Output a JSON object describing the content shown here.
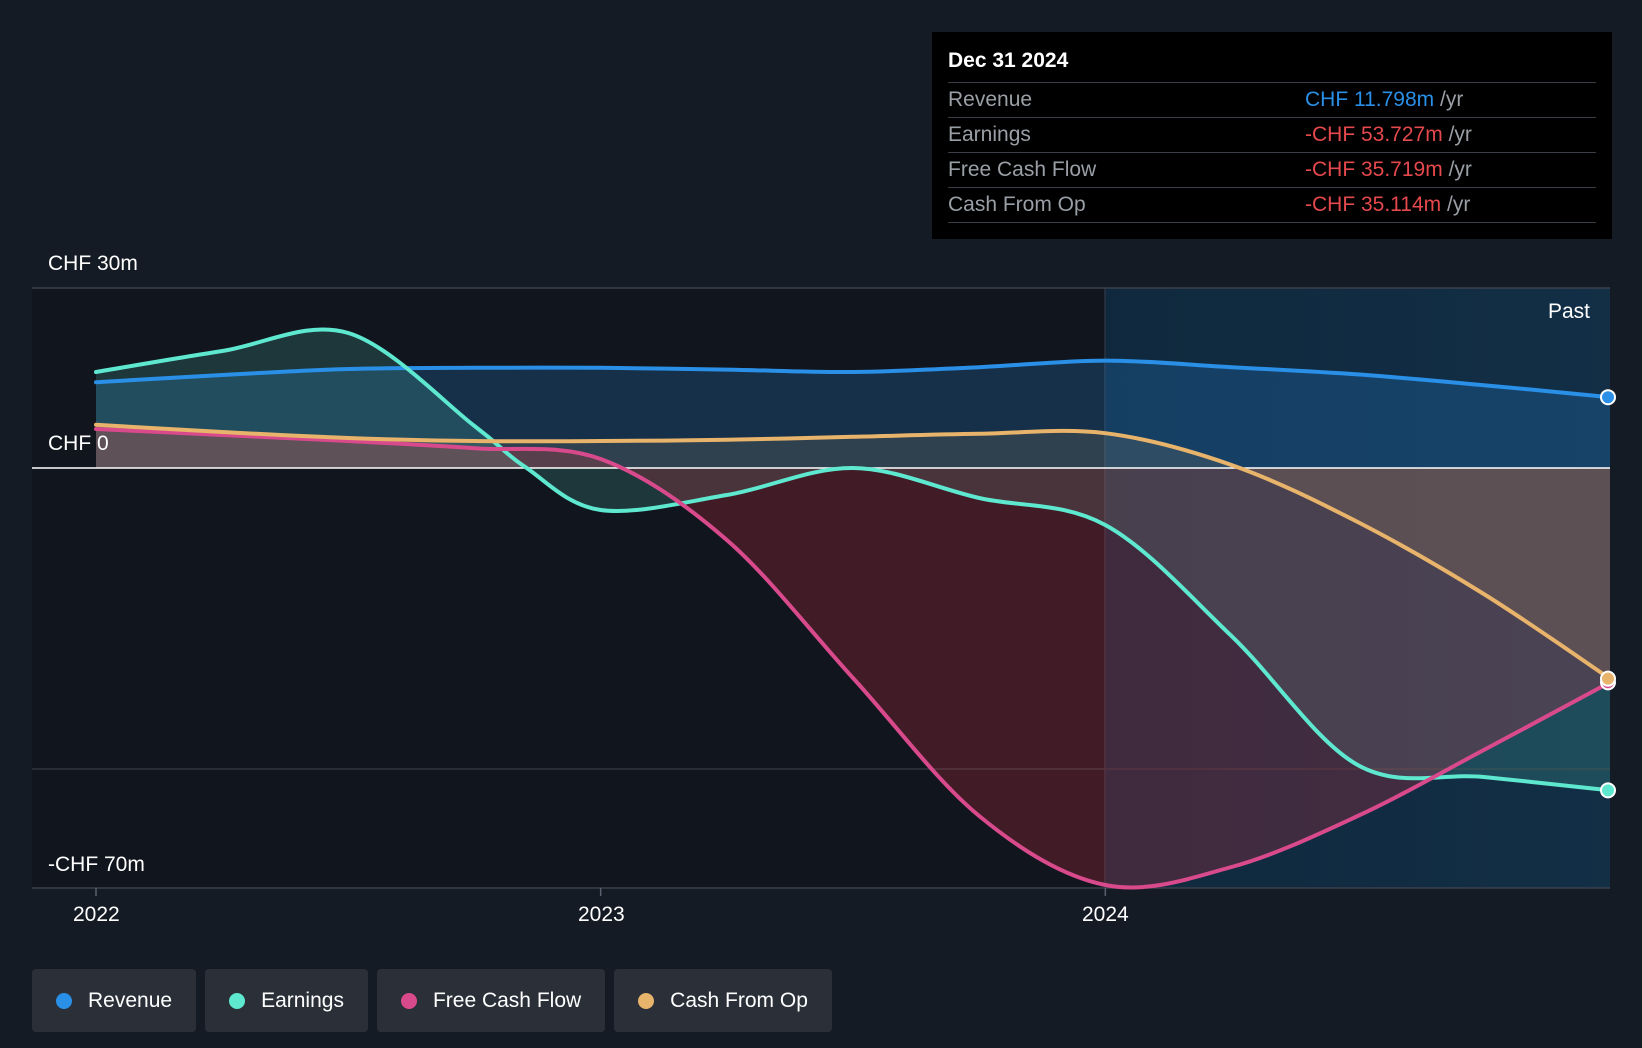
{
  "chart_data": {
    "type": "area",
    "title": "",
    "y_axis": {
      "max_label": "CHF 30m",
      "zero_label": "CHF 0",
      "min_label": "-CHF 70m",
      "ylim": [
        -70,
        30
      ]
    },
    "x_ticks": [
      "2022",
      "2023",
      "2024"
    ],
    "past_label": "Past",
    "series": [
      {
        "name": "Revenue",
        "color": "#2a8fe6",
        "points": [
          [
            2022.0,
            14.3
          ],
          [
            2022.25,
            15.5
          ],
          [
            2022.5,
            16.5
          ],
          [
            2022.75,
            16.7
          ],
          [
            2023.0,
            16.7
          ],
          [
            2023.25,
            16.4
          ],
          [
            2023.5,
            16.0
          ],
          [
            2023.75,
            16.8
          ],
          [
            2024.0,
            17.9
          ],
          [
            2024.25,
            16.8
          ],
          [
            2024.5,
            15.6
          ],
          [
            2024.75,
            13.8
          ],
          [
            2025.0,
            11.8
          ]
        ]
      },
      {
        "name": "Earnings",
        "color": "#5ee8d0",
        "points": [
          [
            2022.0,
            16.0
          ],
          [
            2022.25,
            19.5
          ],
          [
            2022.5,
            22.5
          ],
          [
            2022.75,
            7.0
          ],
          [
            2022.85,
            0.2
          ],
          [
            2023.0,
            -7.0
          ],
          [
            2023.25,
            -4.5
          ],
          [
            2023.5,
            0.0
          ],
          [
            2023.75,
            -5.0
          ],
          [
            2024.0,
            -9.5
          ],
          [
            2024.25,
            -28.0
          ],
          [
            2024.5,
            -49.5
          ],
          [
            2024.75,
            -51.5
          ],
          [
            2025.0,
            -53.727
          ]
        ]
      },
      {
        "name": "Free Cash Flow",
        "color": "#d94a8c",
        "points": [
          [
            2022.0,
            6.5
          ],
          [
            2022.25,
            5.5
          ],
          [
            2022.5,
            4.5
          ],
          [
            2022.75,
            3.3
          ],
          [
            2023.0,
            1.5
          ],
          [
            2023.25,
            -12.0
          ],
          [
            2023.5,
            -35.0
          ],
          [
            2023.75,
            -58.0
          ],
          [
            2024.0,
            -69.5
          ],
          [
            2024.25,
            -66.5
          ],
          [
            2024.5,
            -58.0
          ],
          [
            2024.75,
            -47.0
          ],
          [
            2025.0,
            -35.719
          ]
        ]
      },
      {
        "name": "Cash From Op",
        "color": "#e8b36a",
        "points": [
          [
            2022.0,
            7.2
          ],
          [
            2022.25,
            6.0
          ],
          [
            2022.5,
            5.0
          ],
          [
            2022.75,
            4.5
          ],
          [
            2023.0,
            4.5
          ],
          [
            2023.25,
            4.7
          ],
          [
            2023.5,
            5.2
          ],
          [
            2023.75,
            5.7
          ],
          [
            2024.0,
            5.8
          ],
          [
            2024.25,
            0.5
          ],
          [
            2024.5,
            -9.0
          ],
          [
            2024.75,
            -21.0
          ],
          [
            2025.0,
            -35.114
          ]
        ]
      }
    ]
  },
  "tooltip": {
    "date": "Dec 31 2024",
    "rows": [
      {
        "label": "Revenue",
        "value": "CHF 11.798m",
        "unit": "/yr",
        "color": "#2a8fe6"
      },
      {
        "label": "Earnings",
        "value": "-CHF 53.727m",
        "unit": "/yr",
        "color": "#e5484d"
      },
      {
        "label": "Free Cash Flow",
        "value": "-CHF 35.719m",
        "unit": "/yr",
        "color": "#e5484d"
      },
      {
        "label": "Cash From Op",
        "value": "-CHF 35.114m",
        "unit": "/yr",
        "color": "#e5484d"
      }
    ]
  },
  "legend": [
    {
      "label": "Revenue",
      "color": "#2a8fe6"
    },
    {
      "label": "Earnings",
      "color": "#5ee8d0"
    },
    {
      "label": "Free Cash Flow",
      "color": "#d94a8c"
    },
    {
      "label": "Cash From Op",
      "color": "#e8b36a"
    }
  ]
}
